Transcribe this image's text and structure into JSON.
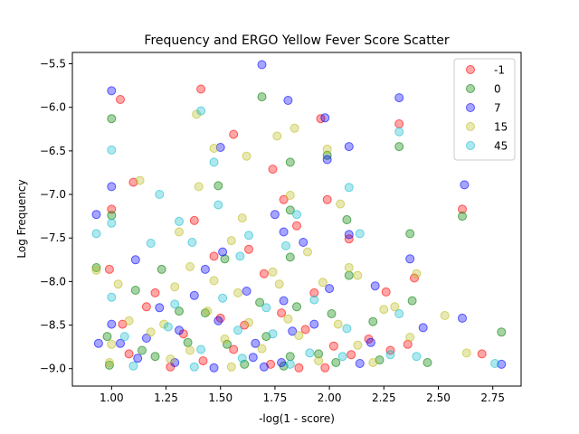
{
  "chart_data": {
    "type": "scatter",
    "title": "Frequency and ERGO Yellow Fever Score Scatter",
    "xlabel": "-log(1 - score)",
    "ylabel": "Log Frequency",
    "xlim": [
      0.82,
      2.88
    ],
    "ylim": [
      -9.2,
      -5.37
    ],
    "xticks": [
      1.0,
      1.25,
      1.5,
      1.75,
      2.0,
      2.25,
      2.5,
      2.75
    ],
    "xtick_labels": [
      "1.00",
      "1.25",
      "1.50",
      "1.75",
      "2.00",
      "2.25",
      "2.50",
      "2.75"
    ],
    "yticks": [
      -9.0,
      -8.5,
      -8.0,
      -7.5,
      -7.0,
      -6.5,
      -6.0,
      -5.5
    ],
    "ytick_labels": [
      "−9.0",
      "−8.5",
      "−8.0",
      "−7.5",
      "−7.0",
      "−6.5",
      "−6.0",
      "−5.5"
    ],
    "grid": false,
    "legend_position": "top-right",
    "marker_alpha": 0.35,
    "series": [
      {
        "name": "-1",
        "color": "#ff0000",
        "points": [
          [
            1.04,
            -5.91
          ],
          [
            1.41,
            -5.79
          ],
          [
            1.56,
            -6.31
          ],
          [
            1.74,
            -6.71
          ],
          [
            1.79,
            -7.06
          ],
          [
            1.96,
            -6.13
          ],
          [
            1.99,
            -7.06
          ],
          [
            2.32,
            -6.19
          ],
          [
            2.61,
            -7.17
          ],
          [
            1.0,
            -7.17
          ],
          [
            1.1,
            -6.86
          ],
          [
            1.38,
            -7.3
          ],
          [
            1.63,
            -7.63
          ],
          [
            1.85,
            -7.36
          ],
          [
            2.09,
            -7.51
          ],
          [
            0.99,
            -7.86
          ],
          [
            1.2,
            -8.13
          ],
          [
            1.47,
            -7.71
          ],
          [
            1.7,
            -7.91
          ],
          [
            1.93,
            -8.13
          ],
          [
            2.26,
            -8.12
          ],
          [
            2.39,
            -7.96
          ],
          [
            1.05,
            -8.49
          ],
          [
            1.16,
            -8.29
          ],
          [
            1.33,
            -8.6
          ],
          [
            1.5,
            -8.42
          ],
          [
            1.61,
            -8.5
          ],
          [
            1.78,
            -8.36
          ],
          [
            1.89,
            -8.55
          ],
          [
            2.02,
            -8.74
          ],
          [
            2.18,
            -8.66
          ],
          [
            2.36,
            -8.72
          ],
          [
            1.08,
            -8.83
          ],
          [
            1.27,
            -8.98
          ],
          [
            1.42,
            -8.91
          ],
          [
            1.56,
            -8.78
          ],
          [
            1.73,
            -8.95
          ],
          [
            1.86,
            -8.99
          ],
          [
            1.98,
            -8.99
          ],
          [
            2.1,
            -8.84
          ],
          [
            2.28,
            -8.79
          ],
          [
            2.7,
            -8.83
          ]
        ]
      },
      {
        "name": "0",
        "color": "#008000",
        "points": [
          [
            1.0,
            -6.13
          ],
          [
            1.69,
            -5.88
          ],
          [
            1.82,
            -6.63
          ],
          [
            1.99,
            -6.55
          ],
          [
            2.32,
            -6.45
          ],
          [
            1.0,
            -7.24
          ],
          [
            1.49,
            -6.9
          ],
          [
            1.82,
            -7.18
          ],
          [
            2.08,
            -7.29
          ],
          [
            2.37,
            -7.45
          ],
          [
            2.61,
            -7.25
          ],
          [
            0.93,
            -7.84
          ],
          [
            1.23,
            -7.86
          ],
          [
            1.52,
            -7.74
          ],
          [
            1.82,
            -7.72
          ],
          [
            2.09,
            -7.93
          ],
          [
            2.38,
            -8.22
          ],
          [
            1.11,
            -8.1
          ],
          [
            1.31,
            -8.34
          ],
          [
            1.43,
            -8.36
          ],
          [
            1.68,
            -8.24
          ],
          [
            1.85,
            -8.29
          ],
          [
            2.01,
            -8.37
          ],
          [
            2.2,
            -8.46
          ],
          [
            0.98,
            -8.63
          ],
          [
            1.14,
            -8.79
          ],
          [
            1.35,
            -8.7
          ],
          [
            1.53,
            -8.72
          ],
          [
            1.71,
            -8.63
          ],
          [
            1.82,
            -8.86
          ],
          [
            1.95,
            -8.83
          ],
          [
            2.23,
            -8.9
          ],
          [
            2.45,
            -8.93
          ],
          [
            2.79,
            -8.58
          ],
          [
            0.99,
            -8.96
          ],
          [
            1.2,
            -8.86
          ],
          [
            1.61,
            -8.95
          ],
          [
            1.79,
            -8.97
          ],
          [
            2.03,
            -8.93
          ]
        ]
      },
      {
        "name": "7",
        "color": "#0000ff",
        "points": [
          [
            1.0,
            -5.81
          ],
          [
            1.69,
            -5.51
          ],
          [
            1.81,
            -5.92
          ],
          [
            1.98,
            -6.12
          ],
          [
            2.32,
            -5.89
          ],
          [
            1.5,
            -6.46
          ],
          [
            1.99,
            -6.6
          ],
          [
            2.09,
            -6.45
          ],
          [
            2.62,
            -6.89
          ],
          [
            1.0,
            -6.91
          ],
          [
            0.93,
            -7.23
          ],
          [
            1.79,
            -7.43
          ],
          [
            1.75,
            -7.23
          ],
          [
            2.09,
            -7.46
          ],
          [
            1.11,
            -7.75
          ],
          [
            1.43,
            -7.86
          ],
          [
            1.51,
            -7.66
          ],
          [
            1.88,
            -7.55
          ],
          [
            2.37,
            -7.74
          ],
          [
            1.22,
            -8.3
          ],
          [
            1.38,
            -8.16
          ],
          [
            1.62,
            -8.11
          ],
          [
            1.79,
            -8.22
          ],
          [
            2.0,
            -8.08
          ],
          [
            2.21,
            -8.05
          ],
          [
            1.0,
            -8.49
          ],
          [
            1.16,
            -8.65
          ],
          [
            1.31,
            -8.56
          ],
          [
            1.49,
            -8.45
          ],
          [
            1.66,
            -8.71
          ],
          [
            1.83,
            -8.57
          ],
          [
            1.93,
            -8.49
          ],
          [
            2.19,
            -8.7
          ],
          [
            2.43,
            -8.53
          ],
          [
            2.61,
            -8.42
          ],
          [
            1.04,
            -8.71
          ],
          [
            1.12,
            -8.88
          ],
          [
            1.29,
            -8.93
          ],
          [
            1.47,
            -8.99
          ],
          [
            1.65,
            -8.87
          ],
          [
            1.78,
            -8.93
          ],
          [
            2.14,
            -8.94
          ],
          [
            2.79,
            -8.95
          ],
          [
            0.94,
            -8.71
          ],
          [
            1.7,
            -8.98
          ]
        ]
      },
      {
        "name": "15",
        "color": "#bcbd22",
        "points": [
          [
            1.39,
            -6.08
          ],
          [
            1.76,
            -6.33
          ],
          [
            1.84,
            -6.24
          ],
          [
            1.47,
            -6.47
          ],
          [
            1.62,
            -6.56
          ],
          [
            1.99,
            -6.48
          ],
          [
            1.13,
            -6.84
          ],
          [
            1.4,
            -6.91
          ],
          [
            1.6,
            -7.27
          ],
          [
            1.82,
            -7.01
          ],
          [
            2.05,
            -7.11
          ],
          [
            1.31,
            -7.43
          ],
          [
            1.55,
            -7.53
          ],
          [
            1.9,
            -7.66
          ],
          [
            2.09,
            -7.84
          ],
          [
            0.93,
            -7.87
          ],
          [
            1.36,
            -7.83
          ],
          [
            1.74,
            -7.89
          ],
          [
            2.13,
            -7.93
          ],
          [
            2.4,
            -7.91
          ],
          [
            1.03,
            -8.03
          ],
          [
            1.29,
            -8.06
          ],
          [
            1.47,
            -7.99
          ],
          [
            1.58,
            -8.13
          ],
          [
            1.77,
            -8.03
          ],
          [
            1.97,
            -8.01
          ],
          [
            2.3,
            -8.29
          ],
          [
            1.08,
            -8.45
          ],
          [
            1.24,
            -8.49
          ],
          [
            1.44,
            -8.34
          ],
          [
            1.63,
            -8.47
          ],
          [
            1.81,
            -8.43
          ],
          [
            2.04,
            -8.49
          ],
          [
            2.25,
            -8.32
          ],
          [
            2.53,
            -8.39
          ],
          [
            1.0,
            -8.72
          ],
          [
            1.18,
            -8.58
          ],
          [
            1.36,
            -8.79
          ],
          [
            1.52,
            -8.66
          ],
          [
            1.69,
            -8.77
          ],
          [
            1.86,
            -8.62
          ],
          [
            2.13,
            -8.73
          ],
          [
            2.37,
            -8.64
          ],
          [
            2.63,
            -8.82
          ],
          [
            0.99,
            -8.93
          ],
          [
            1.27,
            -8.89
          ],
          [
            1.55,
            -8.98
          ],
          [
            1.95,
            -8.91
          ],
          [
            2.2,
            -8.93
          ]
        ]
      },
      {
        "name": "45",
        "color": "#17becf",
        "points": [
          [
            1.41,
            -6.04
          ],
          [
            1.47,
            -6.63
          ],
          [
            2.32,
            -6.28
          ],
          [
            1.0,
            -6.49
          ],
          [
            1.22,
            -7.0
          ],
          [
            1.31,
            -7.31
          ],
          [
            1.49,
            -7.12
          ],
          [
            1.63,
            -7.47
          ],
          [
            1.85,
            -7.23
          ],
          [
            2.09,
            -6.92
          ],
          [
            0.93,
            -7.45
          ],
          [
            1.0,
            -7.33
          ],
          [
            1.18,
            -7.56
          ],
          [
            1.37,
            -7.55
          ],
          [
            1.59,
            -7.71
          ],
          [
            1.8,
            -7.59
          ],
          [
            2.14,
            -7.45
          ],
          [
            1.0,
            -8.18
          ],
          [
            1.29,
            -8.26
          ],
          [
            1.51,
            -8.19
          ],
          [
            1.71,
            -8.3
          ],
          [
            1.93,
            -8.21
          ],
          [
            2.32,
            -8.37
          ],
          [
            1.06,
            -8.63
          ],
          [
            1.26,
            -8.52
          ],
          [
            1.41,
            -8.78
          ],
          [
            1.58,
            -8.56
          ],
          [
            1.74,
            -8.6
          ],
          [
            1.91,
            -8.82
          ],
          [
            2.08,
            -8.54
          ],
          [
            2.28,
            -8.84
          ],
          [
            1.1,
            -8.97
          ],
          [
            1.38,
            -8.98
          ],
          [
            1.6,
            -8.88
          ],
          [
            1.82,
            -8.95
          ],
          [
            2.06,
            -8.86
          ],
          [
            2.4,
            -8.86
          ],
          [
            2.76,
            -8.94
          ]
        ]
      }
    ]
  }
}
